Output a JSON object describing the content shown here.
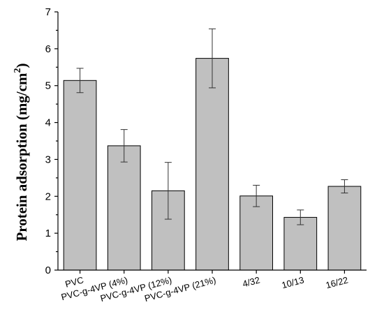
{
  "chart_data": {
    "type": "bar",
    "title": "",
    "xlabel": "",
    "ylabel": "Protein adsorption (mg/cm",
    "ylabel_sup": "2",
    "ylabel_close": ")",
    "categories": [
      "PVC",
      "PVC-g-4VP (4%)",
      "PVC-g-4VP (12%)",
      "PVC-g-4VP (21%)",
      "4/32",
      "10/13",
      "16/22"
    ],
    "values": [
      5.14,
      3.37,
      2.15,
      5.74,
      2.01,
      1.43,
      2.27
    ],
    "errors": [
      0.33,
      0.44,
      0.77,
      0.8,
      0.29,
      0.2,
      0.18
    ],
    "ylim": [
      0,
      7
    ],
    "yticks": [
      "0",
      "1",
      "2",
      "3",
      "4",
      "5",
      "6",
      "7"
    ],
    "bar_color": "#c0c0c0",
    "grid": false,
    "legend": "none"
  }
}
